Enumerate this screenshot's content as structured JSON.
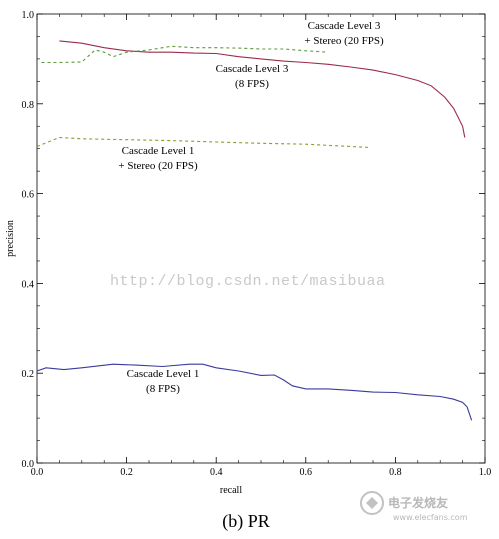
{
  "chart_data": {
    "type": "line",
    "xlabel": "recall",
    "ylabel": "precision",
    "xlim": [
      0,
      1
    ],
    "ylim": [
      0,
      1
    ],
    "xticks": [
      0.0,
      0.2,
      0.4,
      0.6,
      0.8,
      1.0
    ],
    "yticks": [
      0.0,
      0.2,
      0.4,
      0.6,
      0.8,
      1.0
    ],
    "xtick_labels": [
      "0.0",
      "0.2",
      "0.4",
      "0.6",
      "0.8",
      "1.0"
    ],
    "ytick_labels": [
      "0.0",
      "0.2",
      "0.4",
      "0.6",
      "0.8",
      "1.0"
    ],
    "grid": false,
    "series": [
      {
        "color": "#9c2b4a",
        "dash": "solid",
        "annotation": [
          "Cascade Level 3",
          "(8 FPS)"
        ],
        "x": [
          0.05,
          0.1,
          0.15,
          0.2,
          0.25,
          0.3,
          0.35,
          0.4,
          0.45,
          0.5,
          0.55,
          0.6,
          0.65,
          0.7,
          0.75,
          0.8,
          0.85,
          0.88,
          0.91,
          0.93,
          0.95,
          0.955
        ],
        "y": [
          0.94,
          0.935,
          0.925,
          0.918,
          0.915,
          0.915,
          0.913,
          0.912,
          0.905,
          0.9,
          0.895,
          0.892,
          0.888,
          0.882,
          0.875,
          0.865,
          0.852,
          0.84,
          0.815,
          0.79,
          0.75,
          0.725
        ]
      },
      {
        "color": "#5f9a3c",
        "dash": "dashed",
        "annotation": [
          "Cascade Level 3",
          "+ Stereo (20 FPS)"
        ],
        "x": [
          0.01,
          0.05,
          0.1,
          0.13,
          0.15,
          0.17,
          0.2,
          0.25,
          0.3,
          0.35,
          0.4,
          0.45,
          0.5,
          0.55,
          0.6,
          0.65
        ],
        "y": [
          0.892,
          0.892,
          0.893,
          0.92,
          0.915,
          0.905,
          0.915,
          0.92,
          0.928,
          0.925,
          0.925,
          0.924,
          0.922,
          0.922,
          0.918,
          0.915
        ]
      },
      {
        "color": "#8a9a2c",
        "dash": "dashed",
        "annotation": [
          "Cascade Level 1",
          "+ Stereo (20 FPS)"
        ],
        "x": [
          0.0,
          0.05,
          0.1,
          0.2,
          0.3,
          0.4,
          0.5,
          0.6,
          0.7,
          0.74
        ],
        "y": [
          0.705,
          0.725,
          0.722,
          0.72,
          0.718,
          0.715,
          0.712,
          0.71,
          0.705,
          0.703
        ]
      },
      {
        "color": "#3a3a9c",
        "dash": "solid",
        "annotation": [
          "Cascade Level 1",
          "(8 FPS)"
        ],
        "x": [
          0.0,
          0.02,
          0.06,
          0.1,
          0.17,
          0.22,
          0.28,
          0.34,
          0.37,
          0.4,
          0.45,
          0.5,
          0.53,
          0.55,
          0.57,
          0.6,
          0.65,
          0.7,
          0.75,
          0.8,
          0.85,
          0.9,
          0.93,
          0.95,
          0.96,
          0.97
        ],
        "y": [
          0.205,
          0.212,
          0.208,
          0.212,
          0.22,
          0.218,
          0.215,
          0.22,
          0.22,
          0.212,
          0.205,
          0.195,
          0.196,
          0.185,
          0.172,
          0.165,
          0.165,
          0.162,
          0.158,
          0.157,
          0.152,
          0.148,
          0.142,
          0.135,
          0.125,
          0.095
        ]
      }
    ]
  },
  "watermark": "http://blog.csdn.net/masibuaa",
  "caption": "(b) PR",
  "logo": {
    "text": "电子发烧友",
    "subtext": "www.elecfans.com"
  }
}
